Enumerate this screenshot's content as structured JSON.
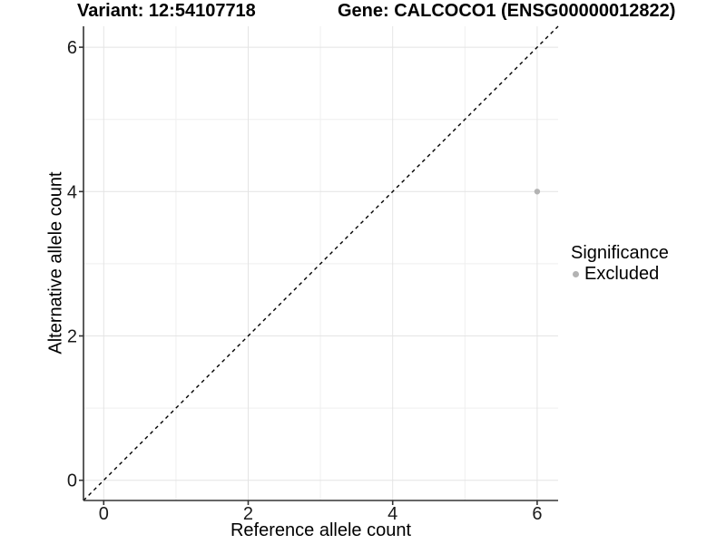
{
  "header": {
    "title_left": "Variant: 12:54107718",
    "title_right": "Gene: CALCOCO1 (ENSG00000012822)"
  },
  "chart_data": {
    "type": "scatter",
    "xlabel": "Reference allele count",
    "ylabel": "Alternative allele count",
    "xlim": [
      -0.28,
      6.29
    ],
    "ylim": [
      -0.28,
      6.29
    ],
    "xticks": [
      0,
      2,
      4,
      6
    ],
    "yticks": [
      0,
      2,
      4,
      6
    ],
    "xticks_minor": [
      1,
      3,
      5
    ],
    "yticks_minor": [
      1,
      3,
      5
    ],
    "grid": "on",
    "reference_line": {
      "type": "identity",
      "linestyle": "dashed",
      "color": "#000000"
    },
    "series": [
      {
        "name": "Excluded",
        "color": "#b3b3b3",
        "points": [
          {
            "x": 6,
            "y": 4
          }
        ]
      }
    ],
    "legend": {
      "title": "Significance",
      "position": "right",
      "items": [
        {
          "label": "Excluded",
          "color": "#b3b3b3",
          "marker": "circle"
        }
      ]
    }
  },
  "colors": {
    "background": "#ffffff",
    "axis": "#333333",
    "grid_major": "#e4e4e4",
    "grid_minor": "#efefef",
    "text": "#000000",
    "point": "#b3b3b3"
  }
}
